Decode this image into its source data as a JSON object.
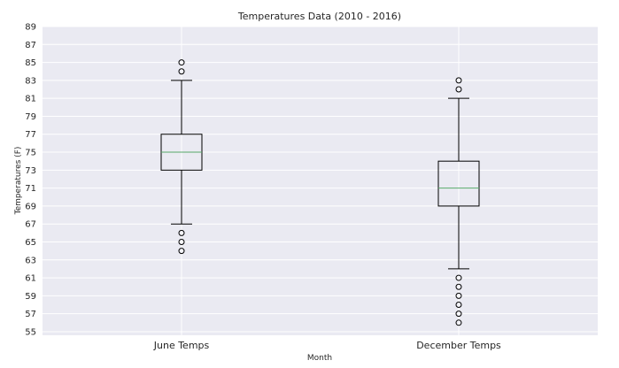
{
  "chart_data": {
    "type": "box",
    "title": "Temperatures Data (2010 - 2016)",
    "xlabel": "Month",
    "ylabel": "Temperatures (F)",
    "ylim": [
      54.6,
      89
    ],
    "yticks": [
      55,
      57,
      59,
      61,
      63,
      65,
      67,
      69,
      71,
      73,
      75,
      77,
      79,
      81,
      83,
      85,
      87,
      89
    ],
    "grid": true,
    "categories": [
      "June Temps",
      "December Temps"
    ],
    "boxes": [
      {
        "name": "June Temps",
        "whisker_low": 67,
        "q1": 73,
        "median": 75,
        "q3": 77,
        "whisker_high": 83,
        "outliers": [
          84,
          85,
          66,
          65,
          64
        ]
      },
      {
        "name": "December Temps",
        "whisker_low": 62,
        "q1": 69,
        "median": 71,
        "q3": 74,
        "whisker_high": 81,
        "outliers": [
          82,
          83,
          61,
          60,
          59,
          58,
          57,
          56
        ]
      }
    ],
    "colors": {
      "plot_background": "#eaeaf2",
      "grid": "#ffffff",
      "box": "#000000",
      "median": "#55a868",
      "text": "#262626"
    }
  }
}
